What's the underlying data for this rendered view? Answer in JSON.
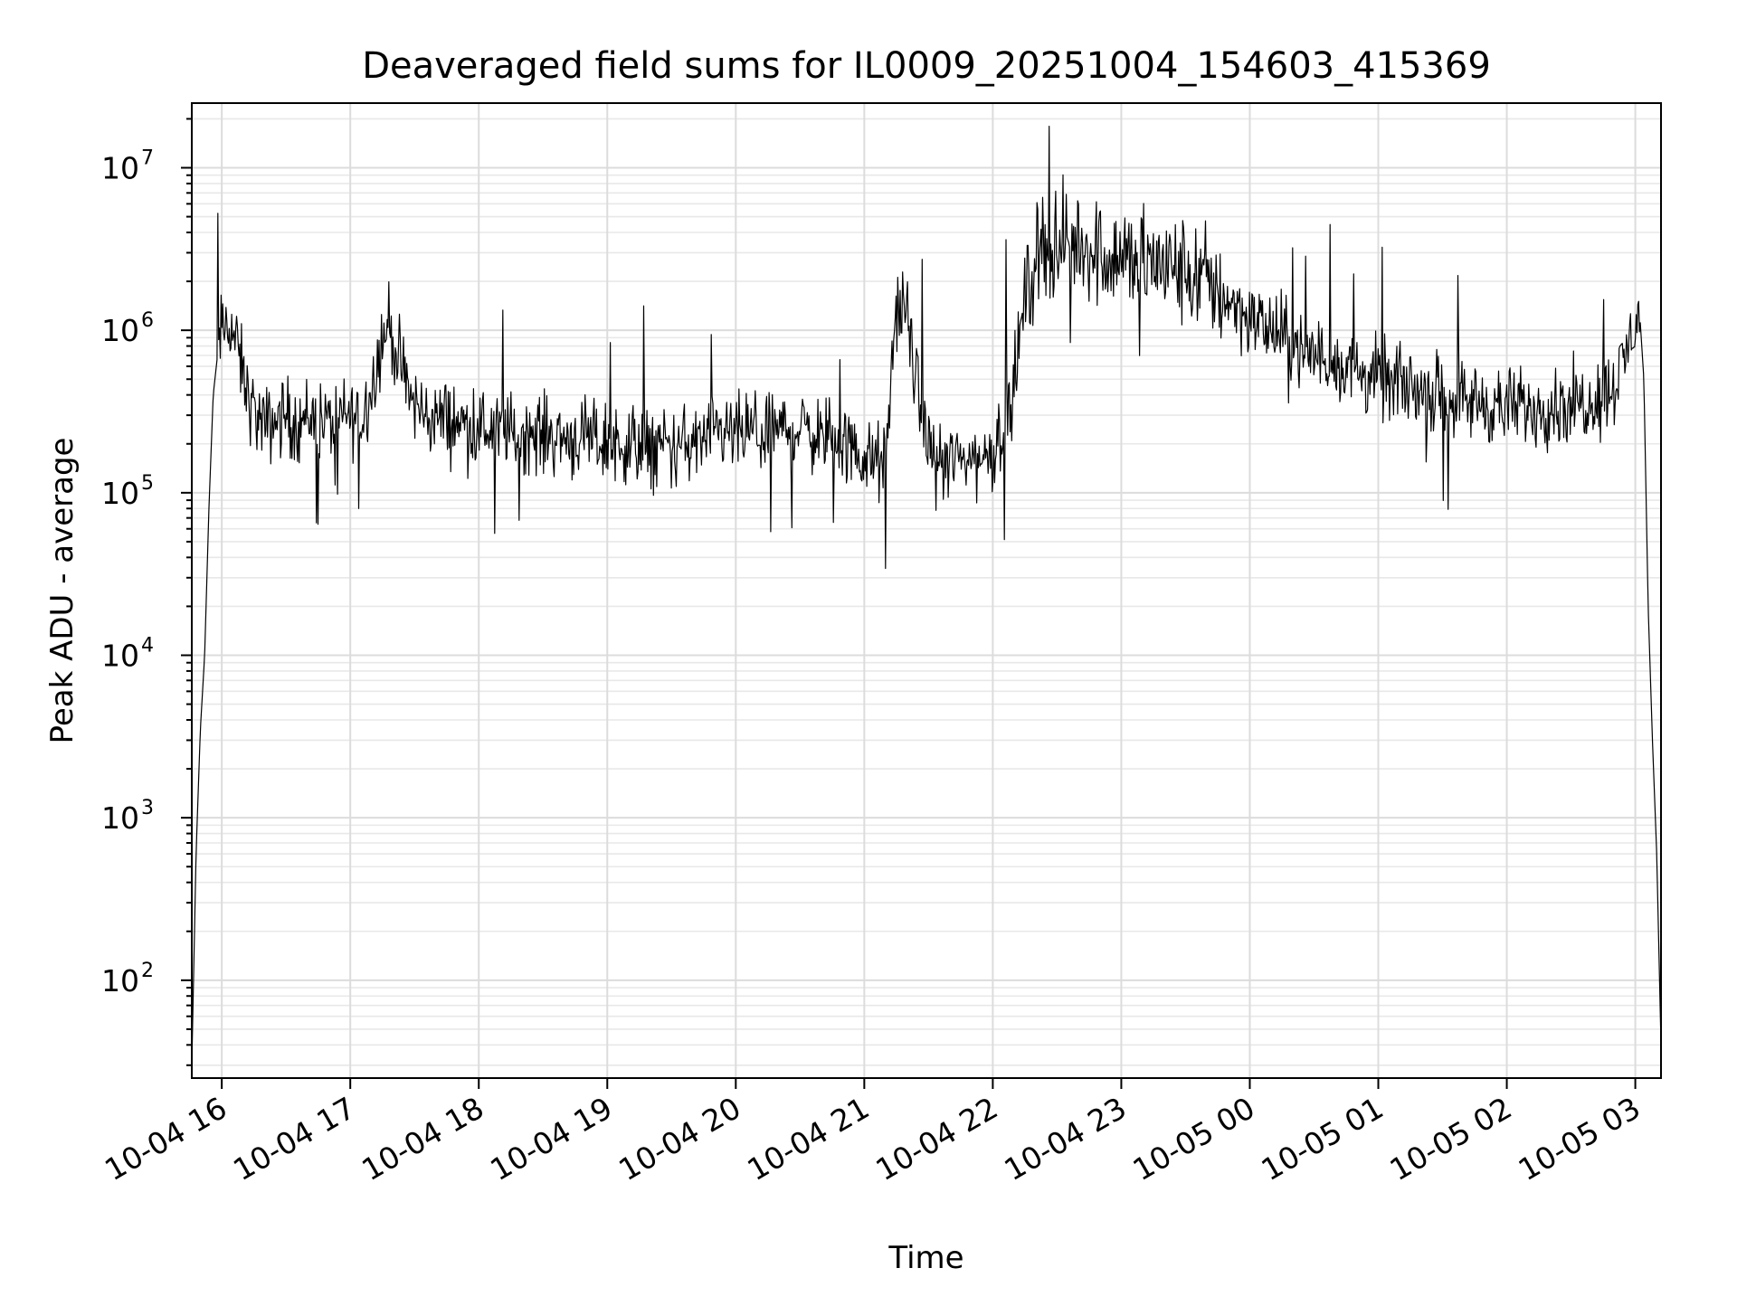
{
  "chart_data": {
    "type": "line",
    "title": "Deaveraged field sums for IL0009_20251004_154603_415369",
    "xlabel": "Time",
    "ylabel": "Peak ADU - average",
    "yscale": "log",
    "ylim": [
      25,
      25000000
    ],
    "xlim": [
      "2025-10-04 15:46",
      "2025-10-05 03:12"
    ],
    "grid": true,
    "line_color": "#000000",
    "x_ticks": [
      {
        "t": "2025-10-04 16:00",
        "label": "10-04 16"
      },
      {
        "t": "2025-10-04 17:00",
        "label": "10-04 17"
      },
      {
        "t": "2025-10-04 18:00",
        "label": "10-04 18"
      },
      {
        "t": "2025-10-04 19:00",
        "label": "10-04 19"
      },
      {
        "t": "2025-10-04 20:00",
        "label": "10-04 20"
      },
      {
        "t": "2025-10-04 21:00",
        "label": "10-04 21"
      },
      {
        "t": "2025-10-04 22:00",
        "label": "10-04 22"
      },
      {
        "t": "2025-10-04 23:00",
        "label": "10-04 23"
      },
      {
        "t": "2025-10-05 00:00",
        "label": "10-05 00"
      },
      {
        "t": "2025-10-05 01:00",
        "label": "10-05 01"
      },
      {
        "t": "2025-10-05 02:00",
        "label": "10-05 02"
      },
      {
        "t": "2025-10-05 03:00",
        "label": "10-05 03"
      }
    ],
    "y_ticks": [
      {
        "value": 100,
        "base": "10",
        "exp": "2"
      },
      {
        "value": 1000,
        "base": "10",
        "exp": "3"
      },
      {
        "value": 10000,
        "base": "10",
        "exp": "4"
      },
      {
        "value": 100000,
        "base": "10",
        "exp": "5"
      },
      {
        "value": 1000000,
        "base": "10",
        "exp": "6"
      },
      {
        "value": 10000000,
        "base": "10",
        "exp": "7"
      }
    ],
    "series": [
      {
        "x": [
          "2025-10-04 15:46",
          "2025-10-04 15:48",
          "2025-10-04 15:50",
          "2025-10-04 15:52",
          "2025-10-04 15:54",
          "2025-10-04 15:56",
          "2025-10-04 15:58",
          "2025-10-04 16:00",
          "2025-10-04 16:04",
          "2025-10-04 16:08",
          "2025-10-04 16:12",
          "2025-10-04 16:16",
          "2025-10-04 16:20",
          "2025-10-04 16:25",
          "2025-10-04 16:30",
          "2025-10-04 16:35",
          "2025-10-04 16:40",
          "2025-10-04 16:45",
          "2025-10-04 16:50",
          "2025-10-04 16:55",
          "2025-10-04 17:00",
          "2025-10-04 17:05",
          "2025-10-04 17:10",
          "2025-10-04 17:15",
          "2025-10-04 17:18",
          "2025-10-04 17:22",
          "2025-10-04 17:26",
          "2025-10-04 17:30",
          "2025-10-04 17:35",
          "2025-10-04 17:45",
          "2025-10-04 18:00",
          "2025-10-04 18:30",
          "2025-10-04 19:00",
          "2025-10-04 19:30",
          "2025-10-04 20:00",
          "2025-10-04 20:30",
          "2025-10-04 20:50",
          "2025-10-04 21:00",
          "2025-10-04 21:10",
          "2025-10-04 21:15",
          "2025-10-04 21:20",
          "2025-10-04 21:25",
          "2025-10-04 21:30",
          "2025-10-04 21:35",
          "2025-10-04 21:45",
          "2025-10-04 22:00",
          "2025-10-04 22:10",
          "2025-10-04 22:15",
          "2025-10-04 22:20",
          "2025-10-04 22:25",
          "2025-10-04 22:30",
          "2025-10-04 22:40",
          "2025-10-04 22:50",
          "2025-10-04 23:00",
          "2025-10-04 23:20",
          "2025-10-04 23:40",
          "2025-10-05 00:00",
          "2025-10-05 00:30",
          "2025-10-05 01:00",
          "2025-10-05 01:30",
          "2025-10-05 02:00",
          "2025-10-05 02:30",
          "2025-10-05 02:45",
          "2025-10-05 02:52",
          "2025-10-05 02:58",
          "2025-10-05 03:00",
          "2025-10-05 03:02",
          "2025-10-05 03:04",
          "2025-10-05 03:06",
          "2025-10-05 03:08",
          "2025-10-05 03:10",
          "2025-10-05 03:12"
        ],
        "values": [
          30,
          600,
          3500,
          10000,
          80000,
          400000,
          700000,
          1000000,
          1100000,
          700000,
          400000,
          300000,
          250000,
          280000,
          300000,
          260000,
          300000,
          280000,
          270000,
          280000,
          300000,
          280000,
          450000,
          900000,
          1100000,
          700000,
          450000,
          350000,
          300000,
          280000,
          250000,
          230000,
          200000,
          190000,
          230000,
          250000,
          200000,
          160000,
          150000,
          1500000,
          1200000,
          400000,
          200000,
          150000,
          160000,
          170000,
          500000,
          1500000,
          3000000,
          3500000,
          3200000,
          3500000,
          3000000,
          2800000,
          2500000,
          2000000,
          1200000,
          700000,
          500000,
          400000,
          330000,
          350000,
          400000,
          500000,
          900000,
          1200000,
          1300000,
          500000,
          20000,
          3000,
          600,
          40
        ]
      }
    ]
  }
}
